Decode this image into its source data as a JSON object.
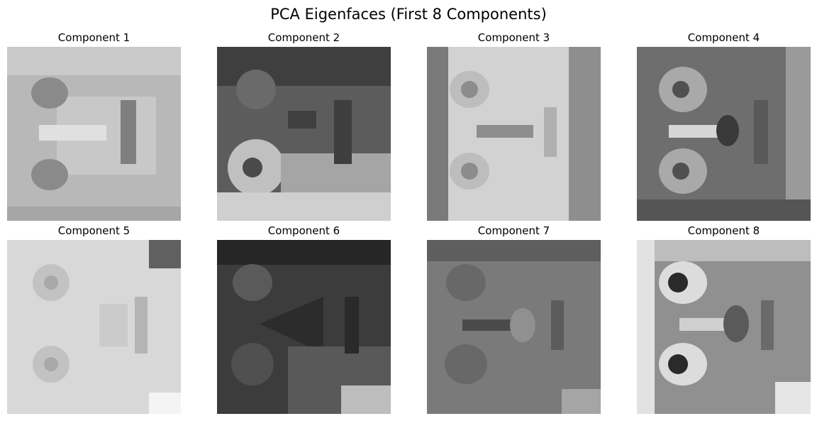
{
  "title": "PCA Eigenfaces (First 8 Components)",
  "colormap": "gray",
  "panels": [
    {
      "label": "Component 1",
      "tone": "light",
      "base": "#b8b8b8"
    },
    {
      "label": "Component 2",
      "tone": "dark",
      "base": "#5c5c5c"
    },
    {
      "label": "Component 3",
      "tone": "light",
      "base": "#d2d2d2"
    },
    {
      "label": "Component 4",
      "tone": "mid-dark",
      "base": "#6e6e6e"
    },
    {
      "label": "Component 5",
      "tone": "very-light",
      "base": "#d8d8d8"
    },
    {
      "label": "Component 6",
      "tone": "very-dark",
      "base": "#3c3c3c"
    },
    {
      "label": "Component 7",
      "tone": "mid",
      "base": "#7a7a7a"
    },
    {
      "label": "Component 8",
      "tone": "high-contrast",
      "base": "#909090"
    }
  ]
}
